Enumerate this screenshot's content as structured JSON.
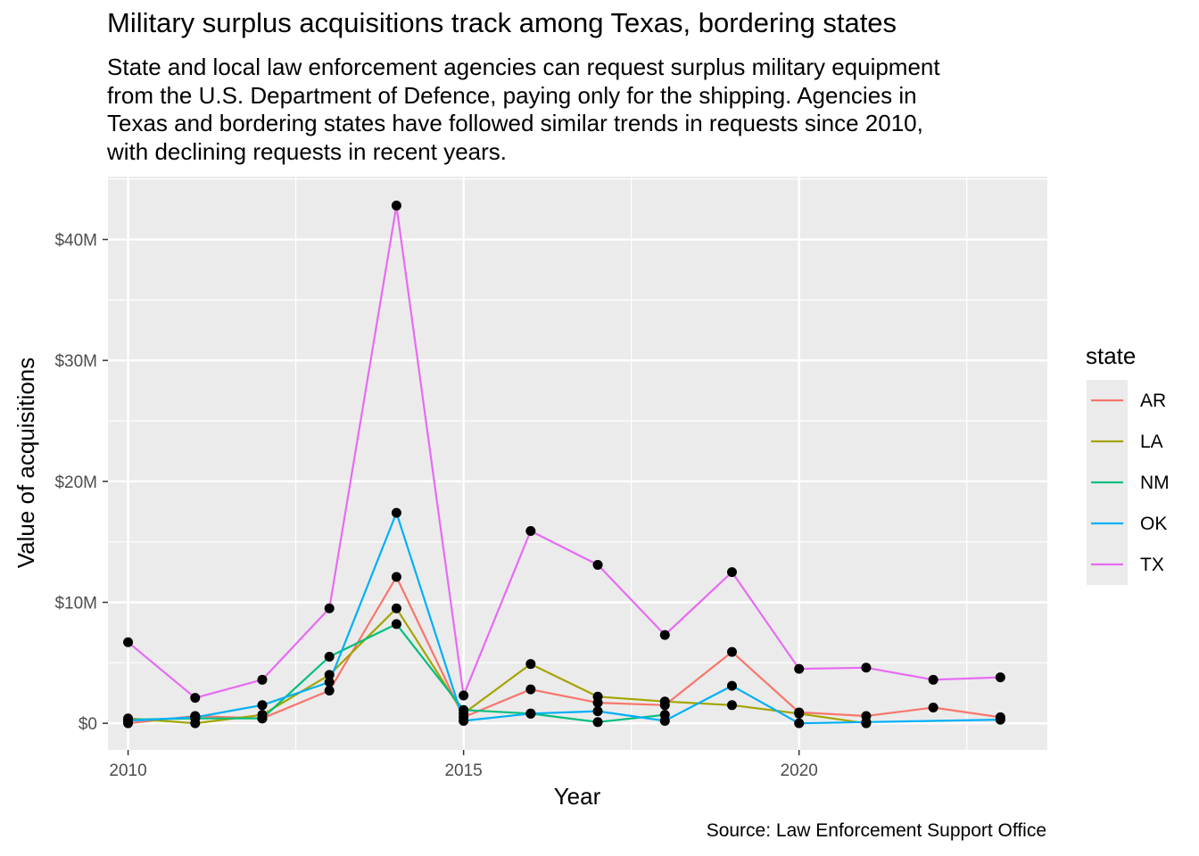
{
  "chart_data": {
    "type": "line",
    "title": "Military surplus acquisitions track among Texas, bordering states",
    "subtitle_lines": [
      "State and local law enforcement agencies can request surplus military equipment",
      "from the U.S. Department of Defence, paying only for the shipping. Agencies in",
      "Texas and bordering states have followed similar trends in requests since 2010,",
      "with declining requests in recent years."
    ],
    "caption": "Source: Law Enforcement Support Office",
    "xlabel": "Year",
    "ylabel": "Value of acquisitions",
    "xlim": [
      2009.7,
      2023.7
    ],
    "ylim": [
      -2.2,
      45.2
    ],
    "x_ticks": [
      2010,
      2015,
      2020
    ],
    "x_tick_labels": [
      "2010",
      "2015",
      "2020"
    ],
    "y_ticks": [
      0,
      10,
      20,
      30,
      40
    ],
    "y_tick_labels": [
      "$0",
      "$10M",
      "$20M",
      "$30M",
      "$40M"
    ],
    "y_unit": "millions of USD",
    "grid": true,
    "legend_title": "state",
    "legend_position": "right",
    "series": [
      {
        "name": "AR",
        "color": "#F8766D",
        "x": [
          2010,
          2011,
          2012,
          2013,
          2014,
          2015,
          2016,
          2017,
          2018,
          2019,
          2020,
          2021,
          2022,
          2023
        ],
        "y": [
          0.0,
          0.6,
          0.4,
          2.7,
          12.1,
          0.5,
          2.8,
          1.7,
          1.5,
          5.9,
          0.9,
          0.6,
          1.3,
          0.5
        ]
      },
      {
        "name": "LA",
        "color": "#A3A500",
        "x": [
          2010,
          2011,
          2012,
          2013,
          2014,
          2015,
          2016,
          2017,
          2018,
          2019,
          2020,
          2021
        ],
        "y": [
          0.4,
          0.0,
          0.7,
          4.0,
          9.5,
          0.8,
          4.9,
          2.2,
          1.8,
          1.5,
          0.8,
          0.0
        ]
      },
      {
        "name": "NM",
        "color": "#00BF7D",
        "x": [
          2010,
          2011,
          2012,
          2013,
          2014,
          2015,
          2016,
          2017,
          2018
        ],
        "y": [
          0.3,
          0.4,
          0.4,
          5.5,
          8.2,
          1.1,
          0.8,
          0.1,
          0.7
        ]
      },
      {
        "name": "OK",
        "color": "#00B0F6",
        "x": [
          2010,
          2011,
          2012,
          2013,
          2014,
          2015,
          2016,
          2017,
          2018,
          2019,
          2020,
          2021,
          2023
        ],
        "y": [
          0.2,
          0.5,
          1.5,
          3.4,
          17.4,
          0.2,
          0.8,
          1.0,
          0.2,
          3.1,
          0.0,
          0.1,
          0.3
        ]
      },
      {
        "name": "TX",
        "color": "#E76BF3",
        "x": [
          2010,
          2011,
          2012,
          2013,
          2014,
          2015,
          2016,
          2017,
          2018,
          2019,
          2020,
          2021,
          2022,
          2023
        ],
        "y": [
          6.7,
          2.1,
          3.6,
          9.5,
          42.8,
          2.3,
          15.9,
          13.1,
          7.3,
          12.5,
          4.5,
          4.6,
          3.6,
          3.8
        ]
      }
    ]
  }
}
